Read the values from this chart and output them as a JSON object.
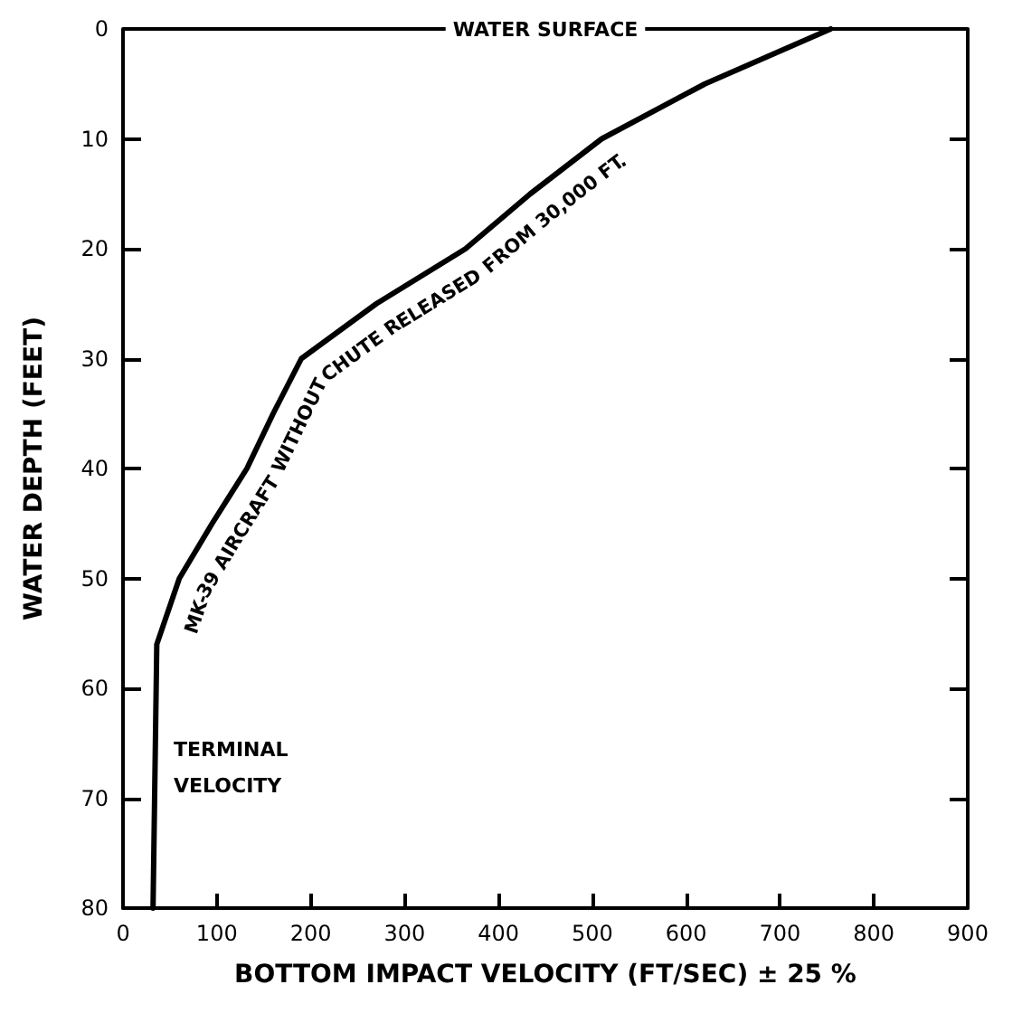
{
  "chart_data": {
    "type": "line",
    "xlabel": "BOTTOM IMPACT VELOCITY (FT/SEC) ± 25 %",
    "ylabel": "WATER DEPTH (FEET)",
    "xlim": [
      0,
      900
    ],
    "xticks": [
      0,
      100,
      200,
      300,
      400,
      500,
      600,
      700,
      800,
      900
    ],
    "ylim": [
      80,
      0
    ],
    "yticks": [
      0,
      10,
      20,
      30,
      40,
      50,
      60,
      70,
      80
    ],
    "series": [
      {
        "name": "MK-39 AIRCRAFT WITHOUT CHUTE RELEASED FROM 30,000 FT.",
        "color": "#000000",
        "x": [
          32,
          36,
          60,
          95,
          132,
          160,
          190,
          270,
          365,
          434,
          510,
          620,
          754
        ],
        "values": [
          80,
          56,
          50,
          45,
          40,
          35,
          30,
          25,
          20,
          15,
          10,
          5,
          0
        ]
      }
    ],
    "ref_lines": [
      {
        "axis": "y",
        "value": 0,
        "label": "WATER SURFACE",
        "color": "#000000"
      }
    ],
    "annotations": [
      "TERMINAL VELOCITY"
    ],
    "marker": "none",
    "line_style": "solid",
    "grid": false,
    "legend": false
  }
}
